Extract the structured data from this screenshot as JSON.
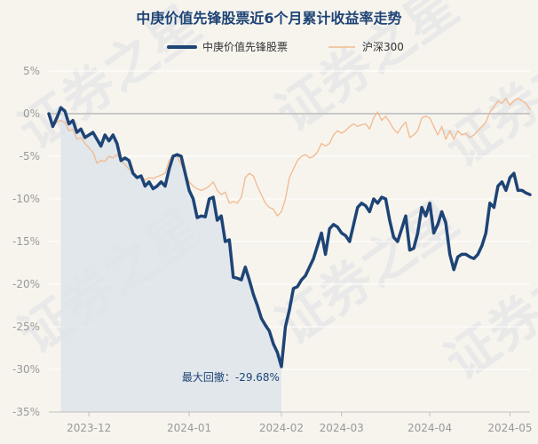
{
  "chart_data": {
    "type": "line",
    "title": "中庚价值先锋股票近6个月累计收益率走势",
    "xlabel": "",
    "ylabel": "",
    "ylim": [
      -35,
      5
    ],
    "y_ticks": [
      5,
      0,
      -5,
      -10,
      -15,
      -20,
      -25,
      -30,
      -35
    ],
    "y_tick_labels": [
      "5%",
      "0%",
      "-5%",
      "-10%",
      "-15%",
      "-20%",
      "-25%",
      "-30%",
      "-35%"
    ],
    "x_ticks": [
      10,
      35,
      58,
      73,
      95,
      115
    ],
    "x_tick_labels": [
      "2023-12",
      "2024-01",
      "2024-02",
      "2024-03",
      "2024-04",
      "2024-05"
    ],
    "x_range": [
      0,
      120
    ],
    "watermark": "证券之星",
    "colors": {
      "fund": "#1e4476",
      "index": "#f2b98e",
      "drawdown": "#dde4ea",
      "zero": "#c8c8c8"
    },
    "drawdown": {
      "label": "最大回撤：-29.68%",
      "start_index": 3,
      "end_index": 58,
      "value": -29.68
    },
    "series": [
      {
        "name": "中庚价值先锋股票",
        "values": [
          0,
          -1.5,
          -0.5,
          0.7,
          0.3,
          -1.2,
          -0.8,
          -2.2,
          -1.8,
          -2.8,
          -2.5,
          -2.2,
          -3.0,
          -3.8,
          -2.5,
          -3.2,
          -2.5,
          -3.5,
          -5.5,
          -5.2,
          -5.5,
          -7.0,
          -7.5,
          -7.3,
          -8.5,
          -8.0,
          -8.8,
          -8.5,
          -8.0,
          -8.5,
          -6.5,
          -5.0,
          -4.8,
          -5.0,
          -7.0,
          -9.0,
          -10.0,
          -12.2,
          -12.0,
          -12.1,
          -10.0,
          -9.8,
          -12.5,
          -12.0,
          -15.0,
          -14.8,
          -19.2,
          -19.3,
          -19.5,
          -18.0,
          -19.5,
          -21.2,
          -22.5,
          -24.0,
          -24.8,
          -25.5,
          -27.0,
          -28.0,
          -29.68,
          -25.0,
          -23.0,
          -20.5,
          -20.3,
          -19.5,
          -19.0,
          -18.0,
          -17.0,
          -15.5,
          -14.0,
          -16.5,
          -13.5,
          -13.0,
          -13.3,
          -14.0,
          -14.3,
          -15.0,
          -13.0,
          -11.0,
          -10.5,
          -10.8,
          -11.5,
          -10.0,
          -10.5,
          -9.8,
          -10.0,
          -12.5,
          -14.5,
          -15.0,
          -13.5,
          -12.0,
          -16.0,
          -15.8,
          -14.0,
          -11.0,
          -12.0,
          -10.5,
          -14.0,
          -13.0,
          -11.5,
          -12.8,
          -16.5,
          -18.3,
          -16.8,
          -16.5,
          -16.5,
          -16.8,
          -17.0,
          -16.5,
          -15.5,
          -14.0,
          -10.5,
          -11.0,
          -8.5,
          -8.0,
          -9.0,
          -7.5,
          -7.0,
          -9.0,
          -9.0,
          -9.3,
          -9.5
        ]
      },
      {
        "name": "沪深300",
        "values": [
          0,
          -1.5,
          -1.0,
          -0.8,
          -1.0,
          -2.0,
          -1.8,
          -3.0,
          -2.8,
          -3.5,
          -4.0,
          -4.5,
          -5.8,
          -5.5,
          -5.6,
          -5.0,
          -5.2,
          -4.8,
          -5.5,
          -6.0,
          -6.5,
          -6.8,
          -7.5,
          -7.2,
          -7.8,
          -7.5,
          -7.6,
          -7.4,
          -7.2,
          -7.0,
          -5.5,
          -4.8,
          -5.0,
          -6.0,
          -7.0,
          -8.0,
          -8.5,
          -8.8,
          -9.0,
          -8.8,
          -8.5,
          -8.0,
          -9.0,
          -9.5,
          -9.2,
          -10.5,
          -10.3,
          -10.5,
          -9.8,
          -7.5,
          -7.0,
          -7.3,
          -8.5,
          -9.5,
          -10.5,
          -11.0,
          -11.2,
          -12.0,
          -11.5,
          -10.0,
          -7.5,
          -6.5,
          -5.5,
          -5.0,
          -4.8,
          -5.2,
          -5.0,
          -4.5,
          -3.5,
          -3.8,
          -3.5,
          -2.5,
          -2.0,
          -2.3,
          -2.0,
          -1.5,
          -1.2,
          -1.5,
          -1.3,
          -1.2,
          -1.8,
          -0.5,
          0.2,
          -0.8,
          -0.3,
          -1.0,
          -1.8,
          -2.3,
          -1.5,
          -1.0,
          -2.8,
          -2.5,
          -2.0,
          -0.5,
          -0.3,
          -0.5,
          -1.5,
          -2.5,
          -1.5,
          -3.0,
          -2.0,
          -3.0,
          -2.0,
          -2.5,
          -2.3,
          -2.8,
          -2.5,
          -2.0,
          -1.5,
          -1.0,
          0.2,
          0.8,
          1.5,
          1.2,
          1.8,
          1.0,
          1.5,
          1.8,
          1.5,
          1.2,
          0.5
        ]
      }
    ]
  }
}
